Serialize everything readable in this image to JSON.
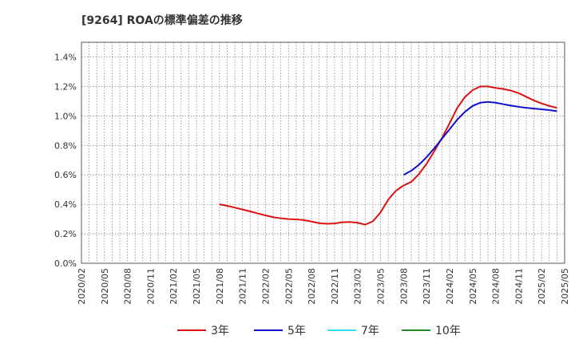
{
  "chart_data": {
    "type": "line",
    "title": "[9264]  ROAの標準偏差の推移",
    "xlabel": "",
    "ylabel": "",
    "x_ticks": [
      "2020/02",
      "2020/05",
      "2020/08",
      "2020/11",
      "2021/02",
      "2021/05",
      "2021/08",
      "2021/11",
      "2022/02",
      "2022/05",
      "2022/08",
      "2022/11",
      "2023/02",
      "2023/05",
      "2023/08",
      "2023/11",
      "2024/02",
      "2024/05",
      "2024/08",
      "2024/11",
      "2025/02",
      "2025/05"
    ],
    "y_ticks": [
      "0.0%",
      "0.2%",
      "0.4%",
      "0.6%",
      "0.8%",
      "1.0%",
      "1.2%",
      "1.4%"
    ],
    "ylim": [
      0,
      1.5
    ],
    "grid": true,
    "legend_position": "bottom",
    "series": [
      {
        "name": "3年",
        "color": "#dd1111",
        "points": [
          [
            "2021/08",
            0.4
          ],
          [
            "2021/09",
            0.39
          ],
          [
            "2021/10",
            0.378
          ],
          [
            "2021/11",
            0.365
          ],
          [
            "2021/12",
            0.352
          ],
          [
            "2022/01",
            0.338
          ],
          [
            "2022/02",
            0.325
          ],
          [
            "2022/03",
            0.313
          ],
          [
            "2022/04",
            0.305
          ],
          [
            "2022/05",
            0.3
          ],
          [
            "2022/06",
            0.298
          ],
          [
            "2022/07",
            0.293
          ],
          [
            "2022/08",
            0.283
          ],
          [
            "2022/09",
            0.272
          ],
          [
            "2022/10",
            0.268
          ],
          [
            "2022/11",
            0.27
          ],
          [
            "2022/12",
            0.278
          ],
          [
            "2023/01",
            0.28
          ],
          [
            "2023/02",
            0.275
          ],
          [
            "2023/03",
            0.262
          ],
          [
            "2023/04",
            0.285
          ],
          [
            "2023/05",
            0.345
          ],
          [
            "2023/06",
            0.432
          ],
          [
            "2023/07",
            0.492
          ],
          [
            "2023/08",
            0.528
          ],
          [
            "2023/09",
            0.552
          ],
          [
            "2023/10",
            0.605
          ],
          [
            "2023/11",
            0.675
          ],
          [
            "2023/12",
            0.76
          ],
          [
            "2024/01",
            0.85
          ],
          [
            "2024/02",
            0.95
          ],
          [
            "2024/03",
            1.055
          ],
          [
            "2024/04",
            1.128
          ],
          [
            "2024/05",
            1.175
          ],
          [
            "2024/06",
            1.2
          ],
          [
            "2024/07",
            1.2
          ],
          [
            "2024/08",
            1.19
          ],
          [
            "2024/09",
            1.183
          ],
          [
            "2024/10",
            1.172
          ],
          [
            "2024/11",
            1.155
          ],
          [
            "2024/12",
            1.13
          ],
          [
            "2025/01",
            1.105
          ],
          [
            "2025/02",
            1.085
          ],
          [
            "2025/03",
            1.068
          ],
          [
            "2025/04",
            1.055
          ]
        ]
      },
      {
        "name": "5年",
        "color": "#1111cc",
        "points": [
          [
            "2023/08",
            0.6
          ],
          [
            "2023/09",
            0.628
          ],
          [
            "2023/10",
            0.668
          ],
          [
            "2023/11",
            0.72
          ],
          [
            "2023/12",
            0.78
          ],
          [
            "2024/01",
            0.845
          ],
          [
            "2024/02",
            0.91
          ],
          [
            "2024/03",
            0.975
          ],
          [
            "2024/04",
            1.028
          ],
          [
            "2024/05",
            1.068
          ],
          [
            "2024/06",
            1.09
          ],
          [
            "2024/07",
            1.095
          ],
          [
            "2024/08",
            1.09
          ],
          [
            "2024/09",
            1.08
          ],
          [
            "2024/10",
            1.07
          ],
          [
            "2024/11",
            1.062
          ],
          [
            "2024/12",
            1.055
          ],
          [
            "2025/01",
            1.05
          ],
          [
            "2025/02",
            1.045
          ],
          [
            "2025/03",
            1.04
          ],
          [
            "2025/04",
            1.032
          ]
        ]
      },
      {
        "name": "7年",
        "color": "#33ddee",
        "points": []
      },
      {
        "name": "10年",
        "color": "#228822",
        "points": []
      }
    ]
  }
}
